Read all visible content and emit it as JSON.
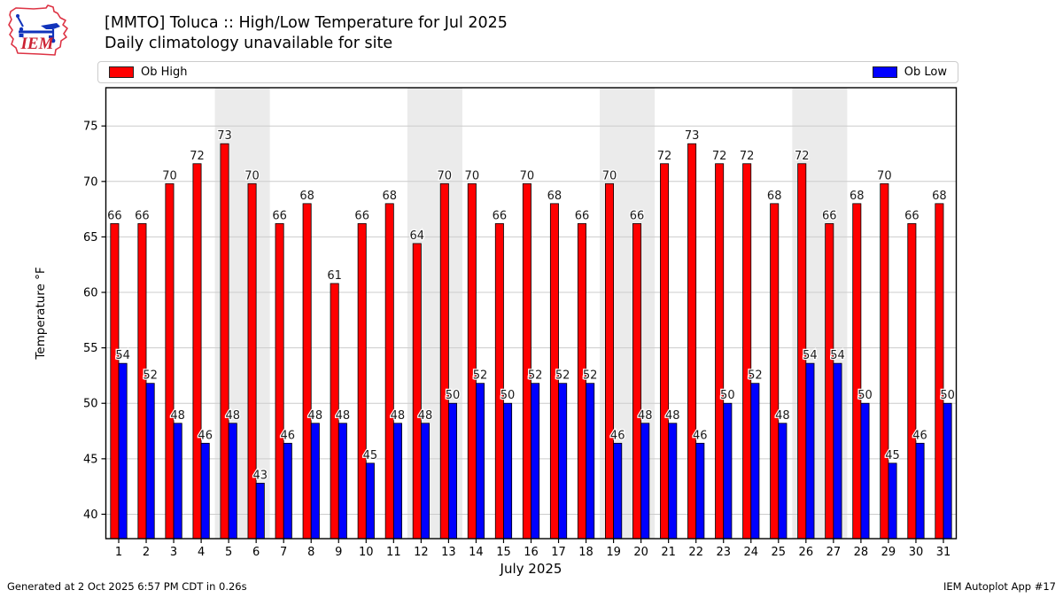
{
  "header": {
    "title": "[MMTO] Toluca :: High/Low Temperature for Jul 2025",
    "subtitle": "Daily climatology unavailable for site",
    "logo_text": "IEM"
  },
  "legend": {
    "high_label": "Ob High",
    "low_label": "Ob Low",
    "high_color": "#ff0000",
    "low_color": "#0000ff"
  },
  "footer": {
    "left": "Generated at 2 Oct 2025 6:57 PM CDT in 0.26s",
    "right": "IEM Autoplot App #17"
  },
  "chart_data": {
    "type": "bar",
    "title": "[MMTO] Toluca :: High/Low Temperature for Jul 2025",
    "subtitle": "Daily climatology unavailable for site",
    "xlabel": "July 2025",
    "ylabel": "Temperature °F",
    "ylim": [
      37.8,
      78.45
    ],
    "yticks": [
      40,
      45,
      50,
      55,
      60,
      65,
      70,
      75
    ],
    "categories": [
      "1",
      "2",
      "3",
      "4",
      "5",
      "6",
      "7",
      "8",
      "9",
      "10",
      "11",
      "12",
      "13",
      "14",
      "15",
      "16",
      "17",
      "18",
      "19",
      "20",
      "21",
      "22",
      "23",
      "24",
      "25",
      "26",
      "27",
      "28",
      "29",
      "30",
      "31"
    ],
    "series": [
      {
        "name": "Ob High",
        "color": "#ff0000",
        "labels": [
          66,
          66,
          70,
          72,
          73,
          70,
          66,
          68,
          61,
          66,
          68,
          64,
          70,
          70,
          66,
          70,
          68,
          66,
          70,
          66,
          72,
          73,
          72,
          72,
          68,
          72,
          66,
          68,
          70,
          66,
          68
        ],
        "values": [
          66.2,
          66.2,
          69.8,
          71.6,
          73.4,
          69.8,
          66.2,
          68.0,
          60.8,
          66.2,
          68.0,
          64.4,
          69.8,
          69.8,
          66.2,
          69.8,
          68.0,
          66.2,
          69.8,
          66.2,
          71.6,
          73.4,
          71.6,
          71.6,
          68.0,
          71.6,
          66.2,
          68.0,
          69.8,
          66.2,
          68.0
        ]
      },
      {
        "name": "Ob Low",
        "color": "#0000ff",
        "labels": [
          54,
          52,
          48,
          46,
          48,
          43,
          46,
          48,
          48,
          45,
          48,
          48,
          50,
          52,
          50,
          52,
          52,
          52,
          46,
          48,
          48,
          46,
          50,
          52,
          48,
          54,
          54,
          50,
          45,
          46,
          50
        ],
        "values": [
          53.6,
          51.8,
          48.2,
          46.4,
          48.2,
          42.8,
          46.4,
          48.2,
          48.2,
          44.6,
          48.2,
          48.2,
          50.0,
          51.8,
          50.0,
          51.8,
          51.8,
          51.8,
          46.4,
          48.2,
          48.2,
          46.4,
          50.0,
          51.8,
          48.2,
          53.6,
          53.6,
          50.0,
          44.6,
          46.4,
          50.0
        ]
      }
    ],
    "weekend_bands": [
      [
        5,
        6
      ],
      [
        12,
        13
      ],
      [
        19,
        20
      ],
      [
        26,
        27
      ]
    ],
    "band_color": "#ebebeb",
    "grid_color": "#cccccc",
    "grid": true,
    "legend_position": "top"
  }
}
